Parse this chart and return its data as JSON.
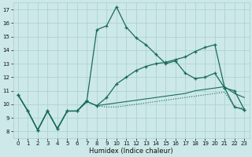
{
  "xlabel": "Humidex (Indice chaleur)",
  "xlim": [
    -0.5,
    23.5
  ],
  "ylim": [
    7.5,
    17.5
  ],
  "xticks": [
    0,
    1,
    2,
    3,
    4,
    5,
    6,
    7,
    8,
    9,
    10,
    11,
    12,
    13,
    14,
    15,
    16,
    17,
    18,
    19,
    20,
    21,
    22,
    23
  ],
  "yticks": [
    8,
    9,
    10,
    11,
    12,
    13,
    14,
    15,
    16,
    17
  ],
  "bg_color": "#cce8e8",
  "grid_color": "#aacfcf",
  "line_color": "#1a6b5a",
  "series": [
    {
      "y": [
        10.7,
        9.5,
        8.1,
        9.5,
        8.2,
        9.5,
        9.5,
        10.2,
        9.9,
        9.8,
        9.8,
        9.9,
        10.0,
        10.1,
        10.2,
        10.3,
        10.4,
        10.5,
        10.6,
        10.7,
        10.8,
        10.9,
        9.8,
        9.7
      ],
      "linestyle": "dotted",
      "marker": false,
      "lw": 0.8
    },
    {
      "y": [
        10.7,
        9.5,
        8.1,
        9.5,
        8.2,
        9.5,
        9.5,
        10.2,
        9.9,
        10.0,
        10.1,
        10.2,
        10.3,
        10.4,
        10.5,
        10.6,
        10.7,
        10.8,
        11.0,
        11.1,
        11.2,
        11.3,
        10.8,
        10.5
      ],
      "linestyle": "solid",
      "marker": false,
      "lw": 0.8
    },
    {
      "y": [
        10.7,
        9.5,
        8.1,
        9.5,
        8.2,
        9.5,
        9.5,
        10.2,
        9.9,
        10.5,
        11.5,
        12.0,
        12.5,
        12.8,
        13.0,
        13.1,
        13.3,
        13.5,
        13.9,
        14.2,
        14.4,
        11.2,
        11.0,
        9.6
      ],
      "linestyle": "solid",
      "marker": true,
      "lw": 0.9
    },
    {
      "y": [
        10.7,
        9.5,
        8.1,
        9.5,
        8.2,
        9.5,
        9.5,
        10.3,
        15.5,
        15.8,
        17.2,
        15.7,
        14.9,
        14.4,
        13.7,
        13.0,
        13.2,
        12.3,
        11.9,
        12.0,
        12.3,
        11.2,
        9.8,
        9.6
      ],
      "linestyle": "solid",
      "marker": true,
      "lw": 0.9
    }
  ]
}
